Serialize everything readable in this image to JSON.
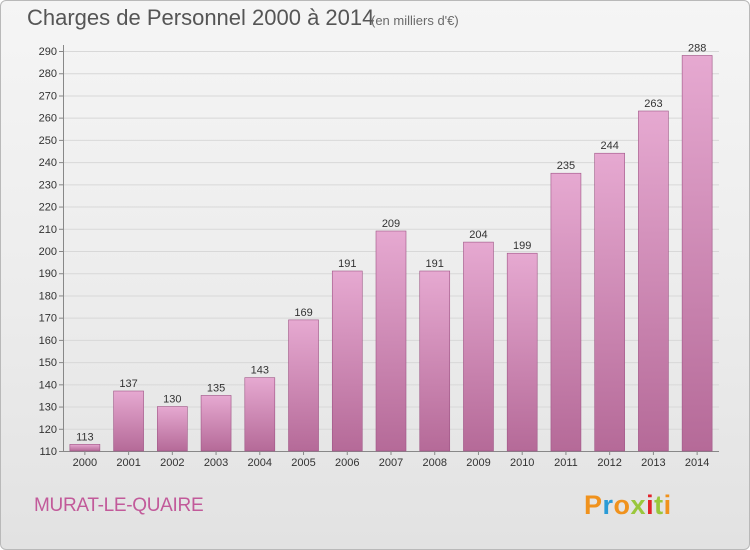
{
  "header": {
    "title": "Charges de Personnel 2000 à 2014",
    "subtitle": "(en milliers d'€)"
  },
  "footer": {
    "commune": "MURAT-LE-QUAIRE",
    "logo_letters": [
      "P",
      "r",
      "o",
      "x",
      "i",
      "t",
      "i"
    ]
  },
  "colors": {
    "bar_top": "#e6a9d1",
    "bar_bottom": "#b56a98",
    "bar_edge": "#9e5585",
    "grid": "#d8d8d8",
    "commune_text": "#c25a9a",
    "logo": [
      "#f0921d",
      "#2a9bd6",
      "#f0921d",
      "#9ac73c",
      "#e2232b",
      "#9ac73c",
      "#f0921d"
    ]
  },
  "chart_data": {
    "type": "bar",
    "title": "Charges de Personnel 2000 à 2014",
    "subtitle": "(en milliers d'€)",
    "categories": [
      "2000",
      "2001",
      "2002",
      "2003",
      "2004",
      "2005",
      "2006",
      "2007",
      "2008",
      "2009",
      "2010",
      "2011",
      "2012",
      "2013",
      "2014"
    ],
    "values": [
      113,
      137,
      130,
      135,
      143,
      169,
      191,
      209,
      191,
      204,
      199,
      235,
      244,
      263,
      288
    ],
    "ylim": [
      110,
      290
    ],
    "yticks": [
      110,
      120,
      130,
      140,
      150,
      160,
      170,
      180,
      190,
      200,
      210,
      220,
      230,
      240,
      250,
      260,
      270,
      280,
      290
    ],
    "grid": true,
    "xlabel": "",
    "ylabel": ""
  }
}
